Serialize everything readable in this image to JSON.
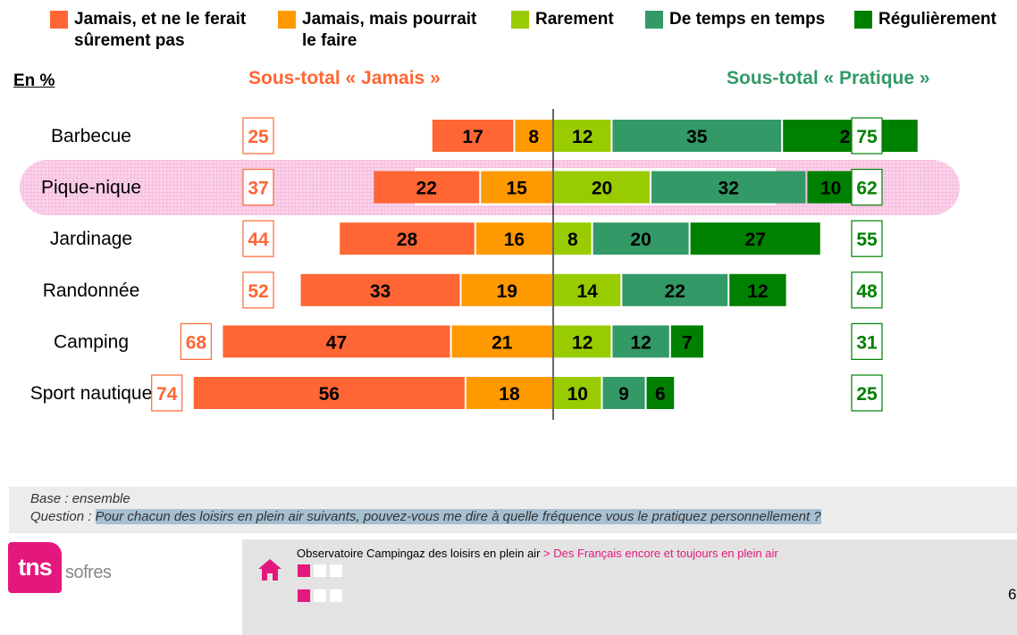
{
  "legend": [
    {
      "label": "Jamais, et ne le ferait\nsûrement pas",
      "color": "#ff6633"
    },
    {
      "label": "Jamais, mais pourrait\nle faire",
      "color": "#ff9900"
    },
    {
      "label": "Rarement",
      "color": "#99cc00"
    },
    {
      "label": "De temps en temps",
      "color": "#339966"
    },
    {
      "label": "Régulièrement",
      "color": "#008000"
    }
  ],
  "unit_label": "En %",
  "subtotal_never_label": "Sous-total « Jamais »",
  "subtotal_practice_label": "Sous-total « Pratique »",
  "highlighted_category": "Pique-nique",
  "chart_data": {
    "type": "bar",
    "orientation": "horizontal",
    "stacked": "diverging",
    "categories": [
      "Barbecue",
      "Pique-nique",
      "Jardinage",
      "Randonnée",
      "Camping",
      "Sport nautique"
    ],
    "series": [
      {
        "name": "Jamais, et ne le ferait sûrement pas",
        "color": "#ff6633",
        "side": "left",
        "values": [
          17,
          22,
          28,
          33,
          47,
          56
        ]
      },
      {
        "name": "Jamais, mais pourrait le faire",
        "color": "#ff9900",
        "side": "left",
        "values": [
          8,
          15,
          16,
          19,
          21,
          18
        ]
      },
      {
        "name": "Rarement",
        "color": "#99cc00",
        "side": "right",
        "values": [
          12,
          20,
          8,
          14,
          12,
          10
        ]
      },
      {
        "name": "De temps en temps",
        "color": "#339966",
        "side": "right",
        "values": [
          35,
          32,
          20,
          22,
          12,
          9
        ]
      },
      {
        "name": "Régulièrement",
        "color": "#008000",
        "side": "right",
        "values": [
          28,
          10,
          27,
          12,
          7,
          6
        ]
      }
    ],
    "subtotal_never": [
      25,
      37,
      44,
      52,
      68,
      74
    ],
    "subtotal_practice": [
      75,
      62,
      55,
      48,
      31,
      25
    ],
    "legend_position": "top",
    "grid": false
  },
  "notes": {
    "base": "Base : ensemble",
    "question_prefix": "Question : ",
    "question_text": "Pour chacun des loisirs en plein air suivants, pouvez-vous me dire à quelle fréquence vous le pratiquez personnellement ?"
  },
  "footer": {
    "logo_tns": "tns",
    "logo_sofres": "sofres",
    "source": "Observatoire Campingaz des loisirs en plein air",
    "section": " > Des Français encore et toujours en plein air",
    "page_number": "6"
  }
}
